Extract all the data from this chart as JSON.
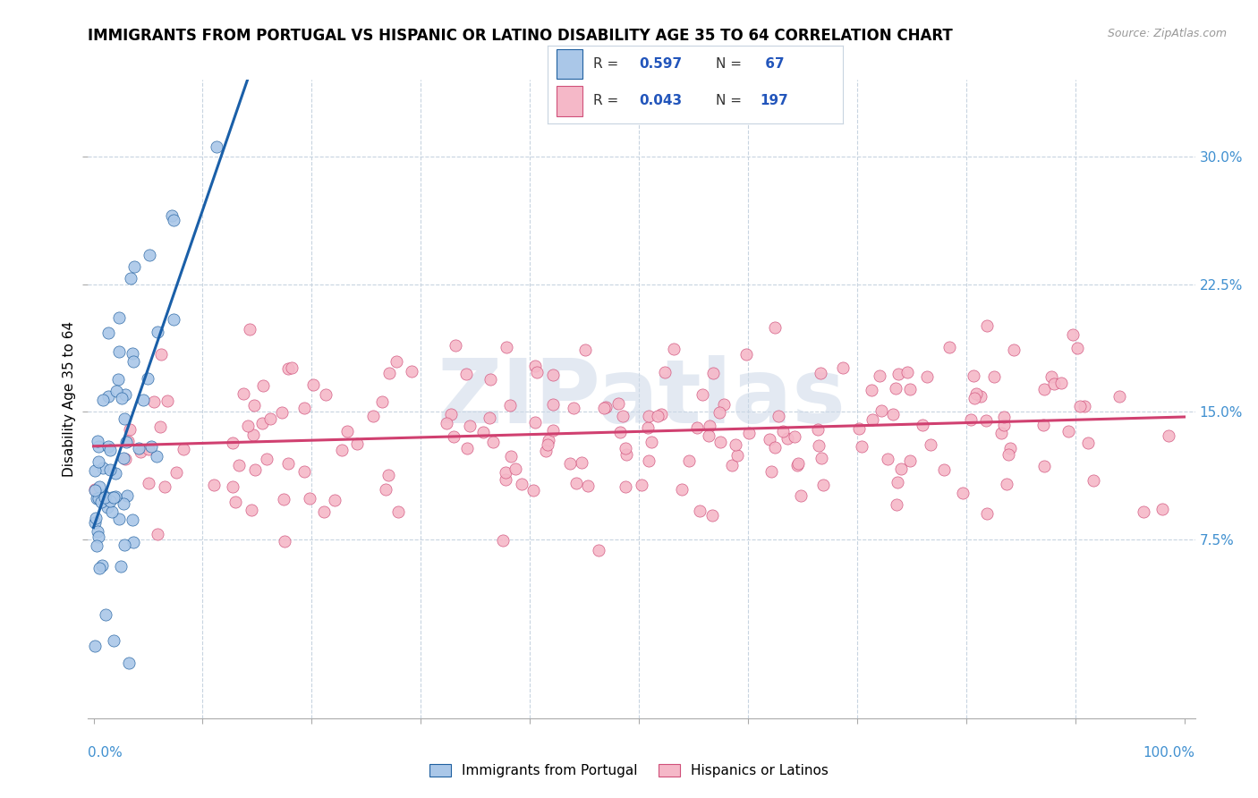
{
  "title": "IMMIGRANTS FROM PORTUGAL VS HISPANIC OR LATINO DISABILITY AGE 35 TO 64 CORRELATION CHART",
  "source": "Source: ZipAtlas.com",
  "ylabel": "Disability Age 35 to 64",
  "ytick_values": [
    0.075,
    0.15,
    0.225,
    0.3
  ],
  "xlim": [
    -0.005,
    1.01
  ],
  "ylim": [
    -0.03,
    0.345
  ],
  "legend_entries": [
    {
      "label": "Immigrants from Portugal",
      "R": "0.597",
      "N": "67",
      "fill_color": "#aac7e8",
      "edge_color": "#2060a0"
    },
    {
      "label": "Hispanics or Latinos",
      "R": "0.043",
      "N": "197",
      "fill_color": "#f5b8c8",
      "edge_color": "#d0507a"
    }
  ],
  "blue_line_color": "#1a5fa8",
  "pink_line_color": "#d04070",
  "blue_dash_color": "#90b8d8",
  "watermark_color": "#ccd8e8",
  "watermark_text": "ZIPatlas",
  "grid_color": "#c8d4e0",
  "right_tick_color": "#4090d0",
  "title_fontsize": 12,
  "source_fontsize": 9,
  "legend_fontsize": 11,
  "seed_blue": 12345,
  "seed_pink": 67890
}
